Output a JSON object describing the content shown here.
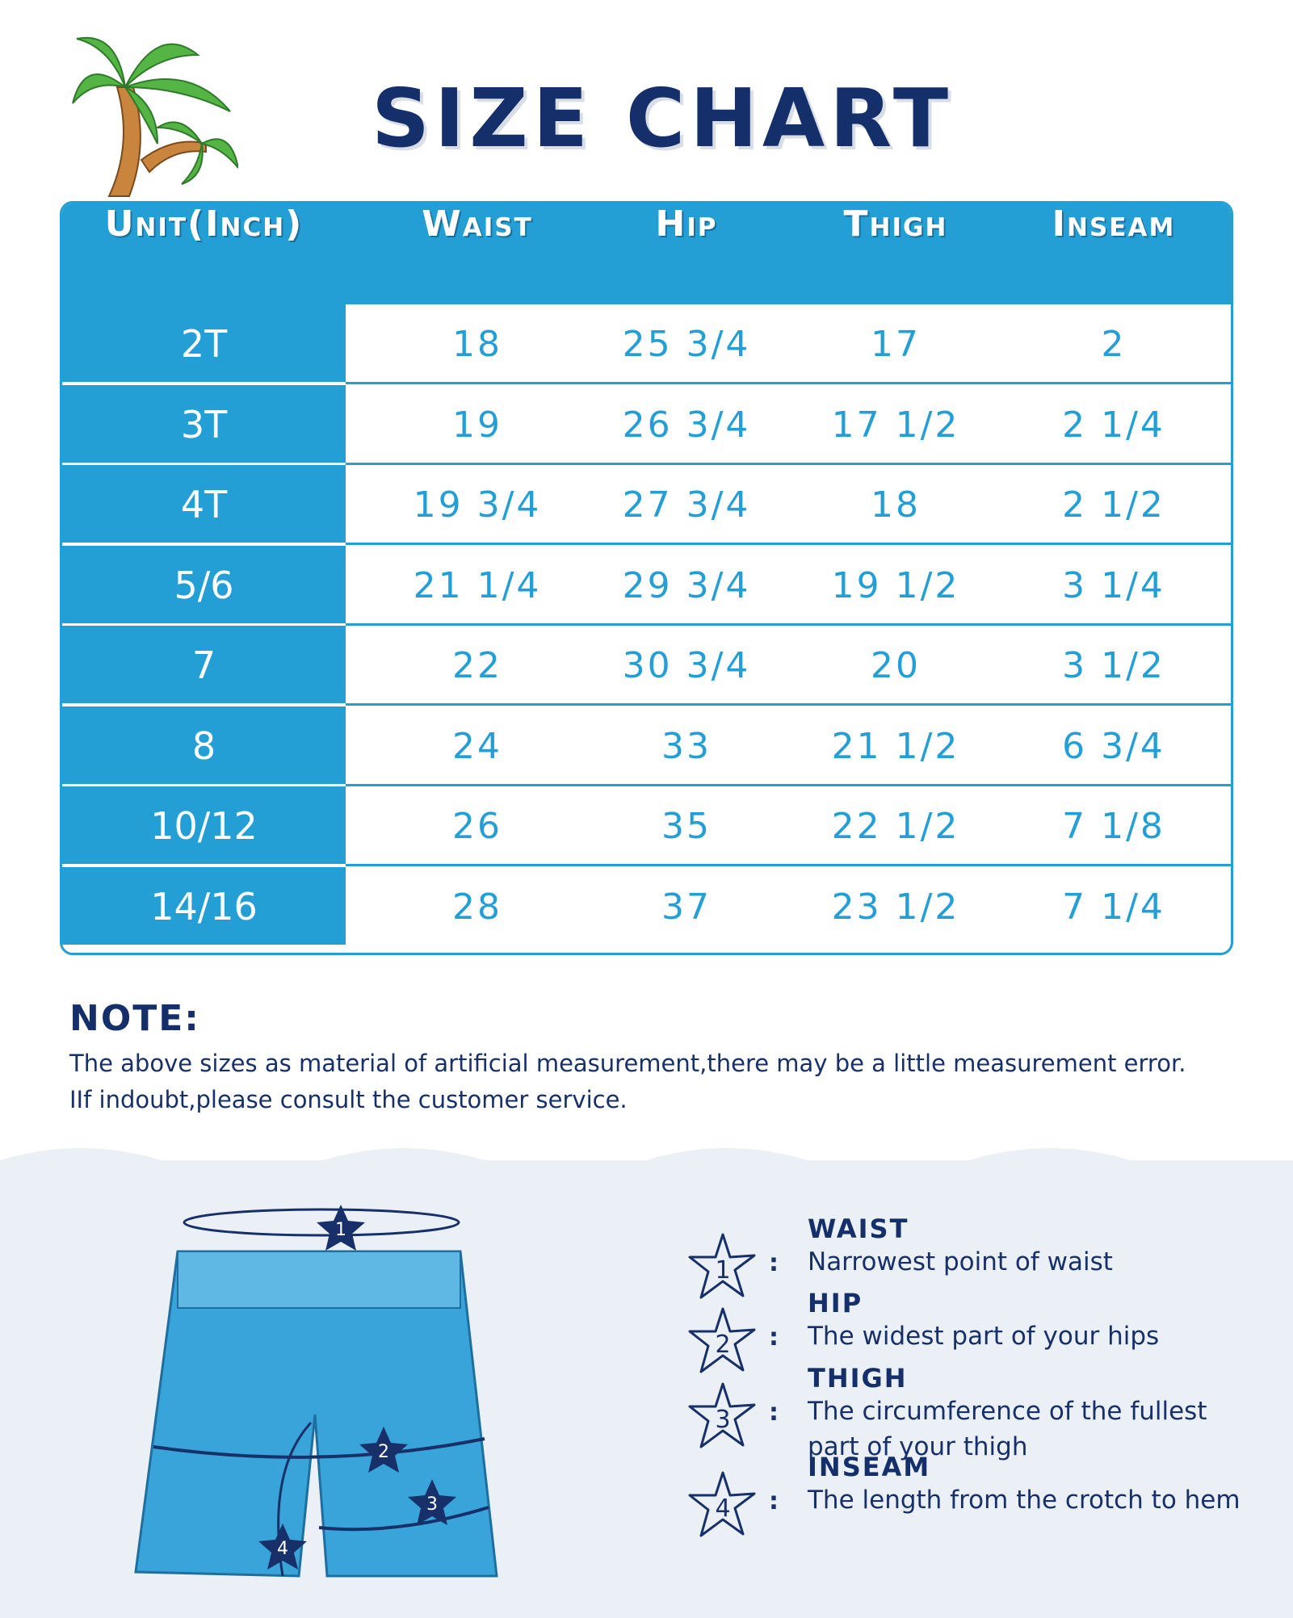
{
  "title": "SIZE CHART",
  "table": {
    "headers": [
      "Unit(Inch)",
      "Waist",
      "Hip",
      "Thigh",
      "Inseam"
    ],
    "rows": [
      [
        "2T",
        "18",
        "25 3/4",
        "17",
        "2"
      ],
      [
        "3T",
        "19",
        "26 3/4",
        "17 1/2",
        "2 1/4"
      ],
      [
        "4T",
        "19 3/4",
        "27 3/4",
        "18",
        "2 1/2"
      ],
      [
        "5/6",
        "21 1/4",
        "29 3/4",
        "19 1/2",
        "3 1/4"
      ],
      [
        "7",
        "22",
        "30 3/4",
        "20",
        "3 1/2"
      ],
      [
        "8",
        "24",
        "33",
        "21 1/2",
        "6 3/4"
      ],
      [
        "10/12",
        "26",
        "35",
        "22 1/2",
        "7 1/8"
      ],
      [
        "14/16",
        "28",
        "37",
        "23 1/2",
        "7 1/4"
      ]
    ]
  },
  "note": {
    "title": "NOTE:",
    "line1": "The above sizes as material of artificial measurement,there may be a little measurement error.",
    "line2": "IIf indoubt,please consult the customer service."
  },
  "guide": [
    {
      "num": "1",
      "label": "WAIST",
      "desc": "Narrowest point of waist"
    },
    {
      "num": "2",
      "label": "HIP",
      "desc": "The widest part of your hips"
    },
    {
      "num": "3",
      "label": "THIGH",
      "desc": "The circumference of the fullest",
      "desc2": "part of your thigh"
    },
    {
      "num": "4",
      "label": "INSEAM",
      "desc": "The length from the crotch to hem"
    }
  ],
  "colon": ":",
  "colors": {
    "primary": "#239fd6",
    "navy": "#142f69",
    "background_wave": "#ebf0f6"
  }
}
